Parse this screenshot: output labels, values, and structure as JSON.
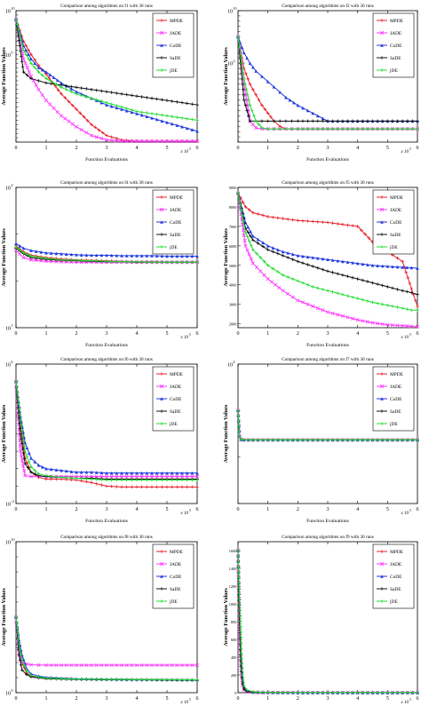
{
  "legend_labels": [
    "MPDE",
    "JADE",
    "CoDE",
    "SaDE",
    "jDE"
  ],
  "colors": {
    "MPDE": "#e8202a",
    "JADE": "#ff38ff",
    "CoDE": "#1f3ae0",
    "SaDE": "#111111",
    "jDE": "#22dd33"
  },
  "chart_data": [
    {
      "type": "line",
      "title": "Comparison among algorithms on f1 with 30 runs",
      "xlabel": "Function Evaluations",
      "ylabel": "Average Function Values",
      "x_multiplier": "x 10^5",
      "xlim": [
        0,
        6
      ],
      "xticks": [
        "0",
        "1",
        "2",
        "3",
        "4",
        "5",
        "6"
      ],
      "y_scale": "log",
      "ylim_exp": [
        -20,
        10
      ],
      "yticks": [
        {
          "base": "10",
          "exp": "10"
        },
        {
          "base": "10",
          "exp": "0"
        }
      ],
      "x": [
        0,
        0.25,
        0.5,
        0.75,
        1,
        1.5,
        2,
        2.5,
        3,
        3.5,
        4,
        4.5,
        5,
        5.5,
        6
      ],
      "series": [
        {
          "name": "MPDE",
          "values_exp": [
            8,
            3,
            0,
            -2.5,
            -4.5,
            -9,
            -12.5,
            -16,
            -18.5,
            -19.5,
            -19.8,
            -19.8,
            -19.8,
            -19.8,
            -19.8
          ]
        },
        {
          "name": "JADE",
          "values_exp": [
            8,
            -1,
            -5,
            -8,
            -10.5,
            -14,
            -16.5,
            -18.5,
            -19.5,
            -19.8,
            -19.8,
            -19.8,
            -19.8,
            -19.8,
            -19.8
          ]
        },
        {
          "name": "CoDE",
          "values_exp": [
            8,
            2,
            -1,
            -3,
            -4,
            -6.5,
            -8.5,
            -10,
            -11.5,
            -12.5,
            -13.5,
            -14.5,
            -15.5,
            -16.5,
            -17.5
          ]
        },
        {
          "name": "SaDE",
          "values_exp": [
            8,
            -4,
            -5.5,
            -6,
            -6.5,
            -7,
            -7.5,
            -8,
            -8.5,
            -9,
            -9.5,
            -10,
            -10.5,
            -11,
            -11.5
          ]
        },
        {
          "name": "jDE",
          "values_exp": [
            8,
            1,
            -2,
            -4,
            -5.5,
            -7.5,
            -9,
            -10,
            -11,
            -12,
            -13,
            -13.5,
            -14,
            -14.5,
            -15
          ]
        }
      ]
    },
    {
      "type": "line",
      "title": "Comparison among algorithms on f2 with 30 runs",
      "xlabel": "Function Evaluations",
      "ylabel": "Average Function Values",
      "x_multiplier": "x 10^5",
      "xlim": [
        0,
        6
      ],
      "xticks": [
        "0",
        "1",
        "2",
        "3",
        "4",
        "5",
        "6"
      ],
      "y_scale": "log",
      "ylim_exp": [
        -15,
        10
      ],
      "yticks": [
        {
          "base": "10",
          "exp": "10"
        },
        {
          "base": "10",
          "exp": "0"
        }
      ],
      "x": [
        0,
        0.2,
        0.4,
        0.6,
        0.8,
        1,
        1.2,
        1.4,
        1.6,
        2,
        2.5,
        3,
        3.5,
        4,
        5,
        6
      ],
      "series": [
        {
          "name": "MPDE",
          "values_exp": [
            5,
            -1,
            -4,
            -6,
            -8,
            -9.5,
            -11,
            -12,
            -12.5,
            -12.5,
            -12.5,
            -12.5,
            -12.5,
            -12.5,
            -12.5,
            -12.5
          ]
        },
        {
          "name": "JADE",
          "values_exp": [
            5,
            -4,
            -11,
            -12.3,
            -12.5,
            -12.5,
            -12.5,
            -12.5,
            -12.5,
            -12.5,
            -12.5,
            -12.5,
            -12.5,
            -12.5,
            -12.5,
            -12.5
          ]
        },
        {
          "name": "CoDE",
          "values_exp": [
            5,
            2,
            0,
            -1.5,
            -2.5,
            -3.5,
            -4.5,
            -5.5,
            -6.5,
            -8,
            -9.5,
            -11,
            -11,
            -11,
            -11,
            -11
          ]
        },
        {
          "name": "SaDE",
          "values_exp": [
            5,
            -7,
            -11,
            -11,
            -11,
            -11,
            -11,
            -11,
            -11,
            -11,
            -11,
            -11,
            -11,
            -11,
            -11,
            -11
          ]
        },
        {
          "name": "jDE",
          "values_exp": [
            5,
            -3,
            -8,
            -11,
            -12.3,
            -12.5,
            -12.5,
            -12.5,
            -12.5,
            -12.5,
            -12.5,
            -12.5,
            -12.5,
            -12.5,
            -12.5,
            -12.5
          ]
        }
      ]
    },
    {
      "type": "line",
      "title": "Comparison among algorithms on f4 with 30 runs",
      "xlabel": "Function Evaluations",
      "ylabel": "Average Function Values",
      "x_multiplier": "x 10^5",
      "xlim": [
        0,
        6
      ],
      "xticks": [
        "0",
        "1",
        "2",
        "3",
        "4",
        "5",
        "6"
      ],
      "y_scale": "log",
      "ylim_exp": [
        1,
        4
      ],
      "yticks": [
        {
          "base": "10",
          "exp": "4"
        },
        {
          "base": "10",
          "exp": "1"
        }
      ],
      "x": [
        0,
        0.25,
        0.5,
        1,
        1.5,
        2,
        2.5,
        3,
        3.5,
        4,
        4.5,
        5,
        5.5,
        6
      ],
      "series": [
        {
          "name": "MPDE",
          "values_exp": [
            2.75,
            2.62,
            2.55,
            2.5,
            2.47,
            2.45,
            2.44,
            2.43,
            2.42,
            2.41,
            2.41,
            2.4,
            2.4,
            2.4
          ]
        },
        {
          "name": "JADE",
          "values_exp": [
            2.65,
            2.5,
            2.45,
            2.42,
            2.41,
            2.4,
            2.4,
            2.4,
            2.4,
            2.4,
            2.4,
            2.4,
            2.4,
            2.4
          ]
        },
        {
          "name": "CoDE",
          "values_exp": [
            2.8,
            2.7,
            2.65,
            2.6,
            2.58,
            2.56,
            2.55,
            2.55,
            2.54,
            2.54,
            2.54,
            2.53,
            2.53,
            2.53
          ]
        },
        {
          "name": "SaDE",
          "values_exp": [
            2.7,
            2.58,
            2.5,
            2.46,
            2.44,
            2.43,
            2.42,
            2.41,
            2.41,
            2.4,
            2.4,
            2.4,
            2.4,
            2.4
          ]
        },
        {
          "name": "jDE",
          "values_exp": [
            2.72,
            2.6,
            2.53,
            2.48,
            2.45,
            2.44,
            2.43,
            2.42,
            2.41,
            2.41,
            2.4,
            2.4,
            2.4,
            2.4
          ]
        }
      ]
    },
    {
      "type": "line",
      "title": "Comparison among algorithms on f5 with 30 runs",
      "xlabel": "Function Evaluations",
      "ylabel": "Average Function Values",
      "x_multiplier": "x 10^5",
      "xlim": [
        0,
        6
      ],
      "xticks": [
        "0",
        "1",
        "2",
        "3",
        "4",
        "5",
        "6"
      ],
      "y_scale": "linear",
      "ylim": [
        1800,
        9000
      ],
      "yticks_values": [
        2000,
        3000,
        4000,
        5000,
        6000,
        7000,
        8000,
        9000
      ],
      "x": [
        0,
        0.25,
        0.5,
        1,
        1.5,
        2,
        2.5,
        3,
        3.5,
        4,
        4.5,
        5,
        5.5,
        5.8,
        6
      ],
      "series": [
        {
          "name": "MPDE",
          "values": [
            8700,
            8000,
            7700,
            7500,
            7400,
            7300,
            7250,
            7200,
            7100,
            7000,
            6200,
            5700,
            5200,
            3800,
            2900
          ]
        },
        {
          "name": "JADE",
          "values": [
            8700,
            6000,
            5100,
            4300,
            3700,
            3200,
            2900,
            2600,
            2400,
            2200,
            2050,
            1950,
            1900,
            1870,
            1850
          ]
        },
        {
          "name": "CoDE",
          "values": [
            8700,
            7200,
            6500,
            6000,
            5700,
            5500,
            5400,
            5300,
            5200,
            5100,
            5000,
            4950,
            4900,
            4880,
            4850
          ]
        },
        {
          "name": "SaDE",
          "values": [
            8700,
            6900,
            6300,
            5800,
            5500,
            5200,
            4950,
            4700,
            4500,
            4300,
            4100,
            3900,
            3700,
            3600,
            3500
          ]
        },
        {
          "name": "jDE",
          "values": [
            8700,
            6700,
            5800,
            5000,
            4500,
            4200,
            3900,
            3700,
            3500,
            3300,
            3100,
            2950,
            2800,
            2700,
            2700
          ]
        }
      ]
    },
    {
      "type": "line",
      "title": "Comparison among algorithms on f6 with 30 runs",
      "xlabel": "Function Evaluations",
      "ylabel": "Average Function Values",
      "x_multiplier": "x 10^5",
      "xlim": [
        0,
        6
      ],
      "xticks": [
        "0",
        "1",
        "2",
        "3",
        "4",
        "5",
        "6"
      ],
      "y_scale": "log",
      "ylim_exp": [
        -2,
        6
      ],
      "yticks": [
        {
          "base": "10",
          "exp": "6"
        },
        {
          "base": "10",
          "exp": "-2"
        }
      ],
      "x": [
        0,
        0.15,
        0.3,
        0.5,
        0.75,
        1,
        1.5,
        2,
        2.5,
        3,
        3.5,
        4,
        4.5,
        5,
        5.5,
        6
      ],
      "series": [
        {
          "name": "MPDE",
          "values_exp": [
            5,
            2.5,
            0.6,
            -0.2,
            -0.5,
            -0.6,
            -0.6,
            -0.65,
            -0.8,
            -1,
            -1.05,
            -1.05,
            -1.05,
            -1.05,
            -1.05,
            -1.05
          ]
        },
        {
          "name": "JADE",
          "values_exp": [
            5,
            1,
            -0.4,
            -0.45,
            -0.45,
            -0.45,
            -0.45,
            -0.45,
            -0.45,
            -0.45,
            -0.45,
            -0.45,
            -0.45,
            -0.45,
            -0.45,
            -0.45
          ]
        },
        {
          "name": "CoDE",
          "values_exp": [
            5,
            3,
            1.5,
            0.6,
            0.2,
            0,
            -0.1,
            -0.2,
            -0.2,
            -0.25,
            -0.25,
            -0.25,
            -0.25,
            -0.25,
            -0.25,
            -0.25
          ]
        },
        {
          "name": "SaDE",
          "values_exp": [
            5,
            2,
            0.3,
            -0.2,
            -0.4,
            -0.45,
            -0.5,
            -0.55,
            -0.55,
            -0.6,
            -0.6,
            -0.6,
            -0.6,
            -0.6,
            -0.6,
            -0.6
          ]
        },
        {
          "name": "jDE",
          "values_exp": [
            5,
            2.8,
            1,
            0.1,
            -0.3,
            -0.4,
            -0.5,
            -0.55,
            -0.6,
            -0.65,
            -0.65,
            -0.65,
            -0.65,
            -0.65,
            -0.65,
            -0.65
          ]
        }
      ]
    },
    {
      "type": "line",
      "title": "Comparison among algorithms on f7 with 30 runs",
      "xlabel": "Function Evaluations",
      "ylabel": "Average Function Values",
      "x_multiplier": "x 10^5",
      "xlim": [
        0,
        6
      ],
      "xticks": [
        "0",
        "1",
        "2",
        "3",
        "4",
        "5",
        "6"
      ],
      "y_scale": "log",
      "ylim_exp": [
        1,
        4
      ],
      "yticks": [
        {
          "base": "10",
          "exp": "4"
        }
      ],
      "x": [
        0,
        0.05,
        0.1,
        0.2,
        0.5,
        1,
        2,
        3,
        4,
        5,
        6
      ],
      "series": [
        {
          "name": "MPDE",
          "values_exp": [
            3,
            2.45,
            2.38,
            2.37,
            2.37,
            2.37,
            2.37,
            2.37,
            2.37,
            2.37,
            2.37
          ]
        },
        {
          "name": "JADE",
          "values_exp": [
            3,
            2.45,
            2.38,
            2.37,
            2.37,
            2.37,
            2.37,
            2.37,
            2.37,
            2.37,
            2.37
          ]
        },
        {
          "name": "CoDE",
          "values_exp": [
            3,
            2.45,
            2.38,
            2.37,
            2.37,
            2.37,
            2.37,
            2.37,
            2.37,
            2.37,
            2.37
          ]
        },
        {
          "name": "SaDE",
          "values_exp": [
            3,
            2.45,
            2.38,
            2.37,
            2.37,
            2.37,
            2.37,
            2.37,
            2.37,
            2.37,
            2.37
          ]
        },
        {
          "name": "jDE",
          "values_exp": [
            3,
            2.45,
            2.38,
            2.37,
            2.37,
            2.37,
            2.37,
            2.37,
            2.37,
            2.37,
            2.37
          ]
        }
      ]
    },
    {
      "type": "line",
      "title": "Comparison among algorithms on f8 with 30 runs",
      "xlabel": "Function Evaluations",
      "ylabel": "Average Function Values",
      "x_multiplier": "x 10^5",
      "xlim": [
        0,
        6
      ],
      "xticks": [
        "0",
        "1",
        "2",
        "3",
        "4",
        "5",
        "6"
      ],
      "y_scale": "log",
      "ylim_exp": [
        0,
        10
      ],
      "yticks": [
        {
          "base": "10",
          "exp": "10"
        },
        {
          "base": "10",
          "exp": "0"
        }
      ],
      "x": [
        0,
        0.1,
        0.2,
        0.35,
        0.5,
        0.75,
        1,
        1.5,
        2,
        3,
        4,
        5,
        6
      ],
      "series": [
        {
          "name": "MPDE",
          "values_exp": [
            5,
            3,
            2,
            1.3,
            1.1,
            1,
            0.95,
            0.92,
            0.9,
            0.88,
            0.87,
            0.86,
            0.85
          ]
        },
        {
          "name": "JADE",
          "values_exp": [
            5,
            2.5,
            2,
            1.9,
            1.85,
            1.83,
            1.82,
            1.82,
            1.82,
            1.82,
            1.82,
            1.82,
            1.82
          ]
        },
        {
          "name": "CoDE",
          "values_exp": [
            5,
            3.5,
            2.5,
            1.6,
            1.25,
            1.1,
            1.02,
            0.97,
            0.93,
            0.9,
            0.88,
            0.87,
            0.86
          ]
        },
        {
          "name": "SaDE",
          "values_exp": [
            5,
            2.5,
            1.5,
            1.2,
            1.05,
            0.98,
            0.93,
            0.9,
            0.88,
            0.86,
            0.85,
            0.84,
            0.83
          ]
        },
        {
          "name": "jDE",
          "values_exp": [
            5,
            3.2,
            2.2,
            1.45,
            1.15,
            1.03,
            0.97,
            0.93,
            0.9,
            0.88,
            0.87,
            0.86,
            0.85
          ]
        }
      ]
    },
    {
      "type": "line",
      "title": "Comparison among algorithms on f9 with 30 runs",
      "xlabel": "Function Evaluations",
      "ylabel": "Average Function Values",
      "x_multiplier": "x 10^5",
      "xlim": [
        0,
        6
      ],
      "xticks": [
        "0",
        "1",
        "2",
        "3",
        "4",
        "5",
        "6"
      ],
      "y_scale": "linear",
      "ylim": [
        0,
        1700
      ],
      "yticks_values": [
        0,
        200,
        400,
        600,
        800,
        1000,
        1200,
        1400,
        1600
      ],
      "x": [
        0,
        0.05,
        0.1,
        0.15,
        0.2,
        0.3,
        0.5,
        1,
        2,
        3,
        4,
        5,
        6
      ],
      "series": [
        {
          "name": "MPDE",
          "values": [
            1600,
            900,
            350,
            120,
            50,
            15,
            5,
            2,
            1,
            1,
            1,
            1,
            1
          ]
        },
        {
          "name": "JADE",
          "values": [
            1600,
            700,
            250,
            80,
            30,
            10,
            4,
            2,
            1,
            1,
            1,
            1,
            1
          ]
        },
        {
          "name": "CoDE",
          "values": [
            1600,
            1000,
            450,
            180,
            70,
            25,
            8,
            3,
            1,
            1,
            1,
            1,
            1
          ]
        },
        {
          "name": "SaDE",
          "values": [
            1600,
            800,
            300,
            100,
            40,
            12,
            5,
            2,
            1,
            1,
            1,
            1,
            1
          ]
        },
        {
          "name": "jDE",
          "values": [
            1600,
            1050,
            500,
            200,
            80,
            30,
            10,
            3,
            1,
            1,
            1,
            1,
            1
          ]
        }
      ]
    }
  ]
}
